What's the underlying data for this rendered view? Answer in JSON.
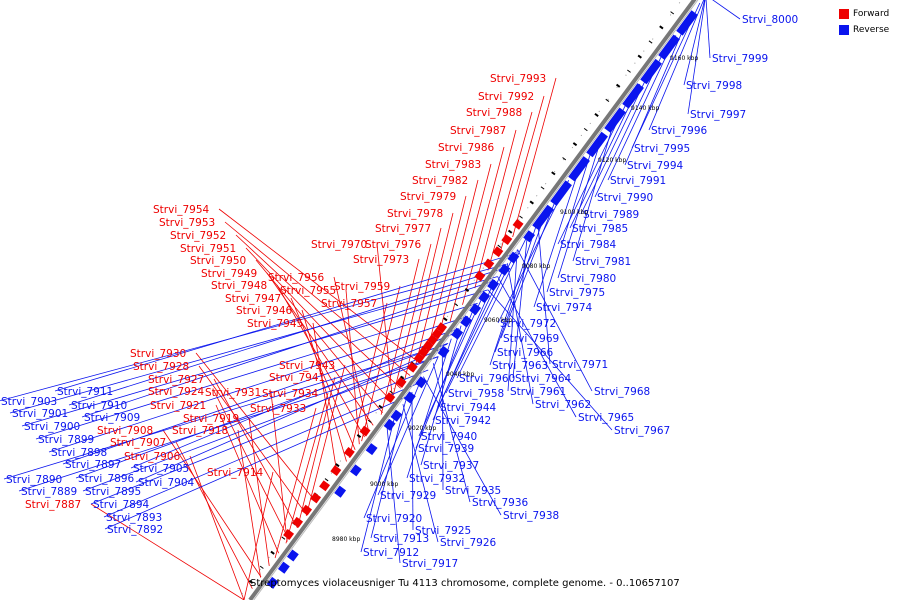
{
  "colors": {
    "forward": "#ee0000",
    "reverse": "#0a14ee",
    "backbone": "#777777",
    "tick": "#000000"
  },
  "legend": [
    {
      "label": "Forward",
      "color": "#ee0000"
    },
    {
      "label": "Reverse",
      "color": "#0a14ee"
    }
  ],
  "footer": {
    "title": "Streptomyces violaceusniger Tu 4113 chromosome, complete genome. - 0..10657107"
  },
  "scale_labels": [
    "9160 kbp",
    "9140 kbp",
    "9120 kbp",
    "9100 kbp",
    "9080 kbp",
    "9060 kbp",
    "9040 kbp",
    "9020 kbp",
    "9000 kbp",
    "8980 kbp"
  ],
  "forward_genes": [
    "Strvi_7993",
    "Strvi_7992",
    "Strvi_7988",
    "Strvi_7987",
    "Strvi_7986",
    "Strvi_7983",
    "Strvi_7982",
    "Strvi_7979",
    "Strvi_7978",
    "Strvi_7977",
    "Strvi_7976",
    "Strvi_7973",
    "Strvi_7970",
    "Strvi_7959",
    "Strvi_7957",
    "Strvi_7956",
    "Strvi_7955",
    "Strvi_7954",
    "Strvi_7953",
    "Strvi_7952",
    "Strvi_7951",
    "Strvi_7950",
    "Strvi_7949",
    "Strvi_7948",
    "Strvi_7947",
    "Strvi_7946",
    "Strvi_7945",
    "Strvi_7943",
    "Strvi_7941",
    "Strvi_7934",
    "Strvi_7933",
    "Strvi_7931",
    "Strvi_7930",
    "Strvi_7928",
    "Strvi_7927",
    "Strvi_7924",
    "Strvi_7921",
    "Strvi_7919",
    "Strvi_7918",
    "Strvi_7914",
    "Strvi_7908",
    "Strvi_7907",
    "Strvi_7906",
    "Strvi_7887"
  ],
  "reverse_genes": [
    "Strvi_8000",
    "Strvi_7999",
    "Strvi_7998",
    "Strvi_7997",
    "Strvi_7996",
    "Strvi_7995",
    "Strvi_7994",
    "Strvi_7991",
    "Strvi_7990",
    "Strvi_7989",
    "Strvi_7985",
    "Strvi_7984",
    "Strvi_7981",
    "Strvi_7980",
    "Strvi_7975",
    "Strvi_7974",
    "Strvi_7972",
    "Strvi_7969",
    "Strvi_7966",
    "Strvi_7963",
    "Strvi_7971",
    "Strvi_7964",
    "Strvi_7968",
    "Strvi_7960",
    "Strvi_7961",
    "Strvi_7958",
    "Strvi_7962",
    "Strvi_7965",
    "Strvi_7967",
    "Strvi_7944",
    "Strvi_7942",
    "Strvi_7940",
    "Strvi_7939",
    "Strvi_7937",
    "Strvi_7932",
    "Strvi_7935",
    "Strvi_7936",
    "Strvi_7929",
    "Strvi_7938",
    "Strvi_7920",
    "Strvi_7925",
    "Strvi_7926",
    "Strvi_7913",
    "Strvi_7912",
    "Strvi_7917",
    "Strvi_7911",
    "Strvi_7903",
    "Strvi_7910",
    "Strvi_7901",
    "Strvi_7909",
    "Strvi_7900",
    "Strvi_7899",
    "Strvi_7898",
    "Strvi_7897",
    "Strvi_7905",
    "Strvi_7904",
    "Strvi_7896",
    "Strvi_7890",
    "Strvi_7889",
    "Strvi_7895",
    "Strvi_7894",
    "Strvi_7893",
    "Strvi_7892"
  ]
}
